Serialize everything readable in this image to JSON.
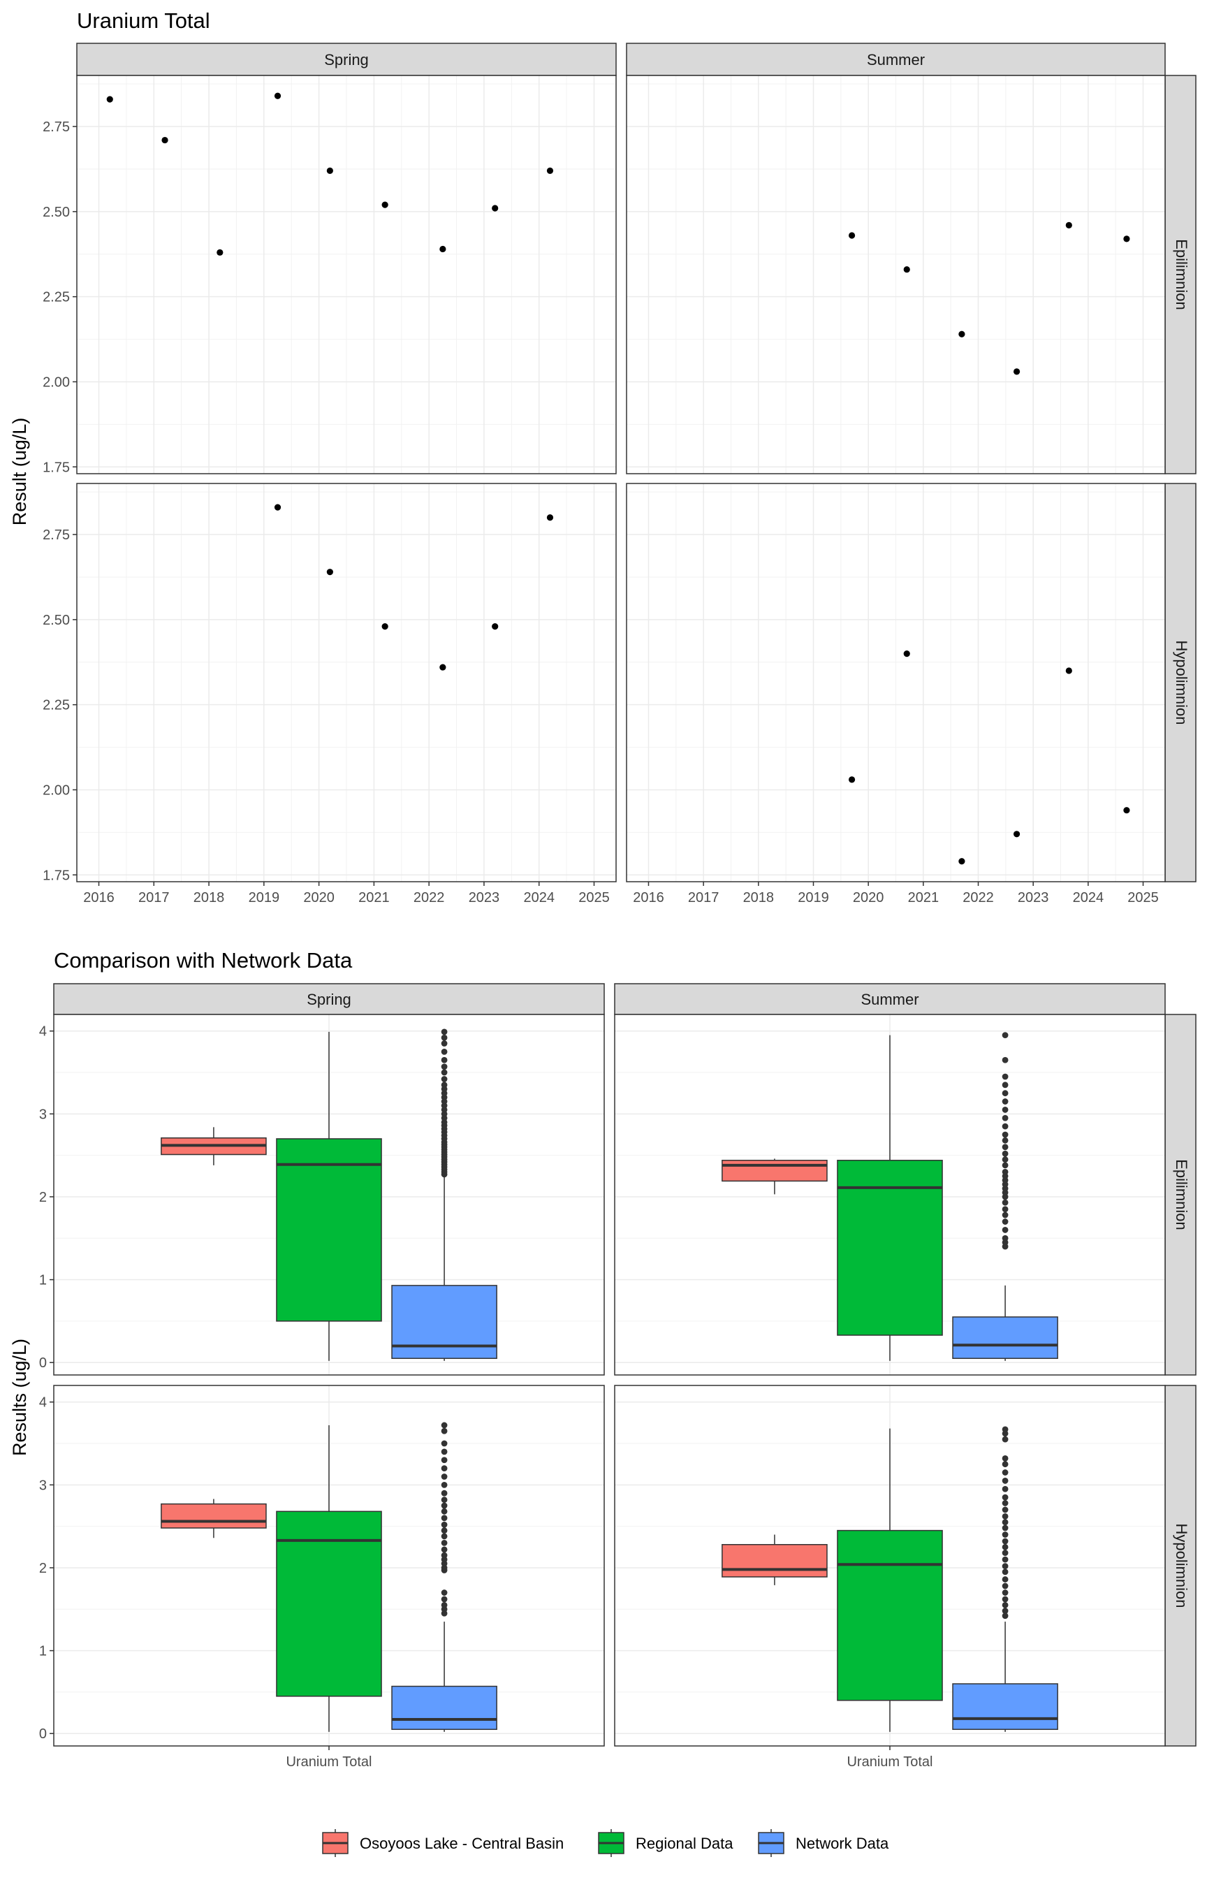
{
  "chart_data": [
    {
      "type": "scatter",
      "title": "Uranium Total",
      "ylabel": "Result (ug/L)",
      "xlabel": "",
      "xlim": [
        2015.6,
        2025.4
      ],
      "ylim": [
        1.73,
        2.9
      ],
      "xticks": [
        2016,
        2017,
        2018,
        2019,
        2020,
        2021,
        2022,
        2023,
        2024,
        2025
      ],
      "yticks": [
        "1.75",
        "2.00",
        "2.25",
        "2.50",
        "2.75"
      ],
      "grid": true,
      "facet_cols": [
        "Spring",
        "Summer"
      ],
      "facet_rows": [
        "Epilimnion",
        "Hypolimnion"
      ],
      "panels": [
        {
          "col": "Spring",
          "row": "Epilimnion",
          "points": [
            [
              2016.2,
              2.83
            ],
            [
              2017.2,
              2.71
            ],
            [
              2018.2,
              2.38
            ],
            [
              2019.25,
              2.84
            ],
            [
              2020.2,
              2.62
            ],
            [
              2021.2,
              2.52
            ],
            [
              2022.25,
              2.39
            ],
            [
              2023.2,
              2.51
            ],
            [
              2024.2,
              2.62
            ]
          ]
        },
        {
          "col": "Summer",
          "row": "Epilimnion",
          "points": [
            [
              2019.7,
              2.43
            ],
            [
              2020.7,
              2.33
            ],
            [
              2021.7,
              2.14
            ],
            [
              2022.7,
              2.03
            ],
            [
              2023.65,
              2.46
            ],
            [
              2024.7,
              2.42
            ]
          ]
        },
        {
          "col": "Spring",
          "row": "Hypolimnion",
          "points": [
            [
              2019.25,
              2.83
            ],
            [
              2020.2,
              2.64
            ],
            [
              2021.2,
              2.48
            ],
            [
              2022.25,
              2.36
            ],
            [
              2023.2,
              2.48
            ],
            [
              2024.2,
              2.8
            ]
          ]
        },
        {
          "col": "Summer",
          "row": "Hypolimnion",
          "points": [
            [
              2019.7,
              2.03
            ],
            [
              2020.7,
              2.4
            ],
            [
              2021.7,
              1.79
            ],
            [
              2022.7,
              1.87
            ],
            [
              2023.65,
              2.35
            ],
            [
              2024.7,
              1.94
            ]
          ]
        }
      ]
    },
    {
      "type": "box",
      "title": "Comparison with Network Data",
      "ylabel": "Results (ug/L)",
      "categories": [
        "Uranium Total"
      ],
      "ylim": [
        -0.15,
        4.2
      ],
      "yticks": [
        0,
        1,
        2,
        3,
        4
      ],
      "grid": true,
      "legend": "bottom",
      "facet_cols": [
        "Spring",
        "Summer"
      ],
      "facet_rows": [
        "Epilimnion",
        "Hypolimnion"
      ],
      "series": [
        {
          "name": "Osoyoos Lake - Central Basin",
          "color": "#F8766D"
        },
        {
          "name": "Regional Data",
          "color": "#00BA38"
        },
        {
          "name": "Network Data",
          "color": "#619CFF"
        }
      ],
      "panels": [
        {
          "col": "Spring",
          "row": "Epilimnion",
          "boxes": [
            {
              "series": "Osoyoos Lake - Central Basin",
              "min": 2.38,
              "q1": 2.51,
              "median": 2.62,
              "q3": 2.71,
              "max": 2.84,
              "outliers": []
            },
            {
              "series": "Regional Data",
              "min": 0.02,
              "q1": 0.5,
              "median": 2.39,
              "q3": 2.7,
              "max": 3.99,
              "outliers": []
            },
            {
              "series": "Network Data",
              "min": 0.02,
              "q1": 0.05,
              "median": 0.2,
              "q3": 0.93,
              "max": 2.25,
              "outliers": [
                2.27,
                2.3,
                2.33,
                2.36,
                2.39,
                2.42,
                2.45,
                2.48,
                2.51,
                2.54,
                2.57,
                2.6,
                2.63,
                2.66,
                2.7,
                2.74,
                2.78,
                2.82,
                2.86,
                2.9,
                2.95,
                3.0,
                3.05,
                3.1,
                3.15,
                3.2,
                3.25,
                3.3,
                3.35,
                3.42,
                3.5,
                3.57,
                3.65,
                3.75,
                3.85,
                3.92,
                3.99
              ]
            }
          ]
        },
        {
          "col": "Summer",
          "row": "Epilimnion",
          "boxes": [
            {
              "series": "Osoyoos Lake - Central Basin",
              "min": 2.03,
              "q1": 2.19,
              "median": 2.38,
              "q3": 2.44,
              "max": 2.46,
              "outliers": []
            },
            {
              "series": "Regional Data",
              "min": 0.02,
              "q1": 0.33,
              "median": 2.11,
              "q3": 2.44,
              "max": 3.95,
              "outliers": []
            },
            {
              "series": "Network Data",
              "min": 0.02,
              "q1": 0.05,
              "median": 0.21,
              "q3": 0.55,
              "max": 0.93,
              "outliers": [
                1.4,
                1.45,
                1.5,
                1.6,
                1.7,
                1.78,
                1.85,
                1.93,
                2.0,
                2.05,
                2.1,
                2.15,
                2.2,
                2.25,
                2.3,
                2.38,
                2.45,
                2.52,
                2.6,
                2.68,
                2.75,
                2.85,
                2.95,
                3.05,
                3.15,
                3.25,
                3.35,
                3.45,
                3.65,
                3.95
              ]
            }
          ]
        },
        {
          "col": "Spring",
          "row": "Hypolimnion",
          "boxes": [
            {
              "series": "Osoyoos Lake - Central Basin",
              "min": 2.36,
              "q1": 2.48,
              "median": 2.56,
              "q3": 2.77,
              "max": 2.83,
              "outliers": []
            },
            {
              "series": "Regional Data",
              "min": 0.02,
              "q1": 0.45,
              "median": 2.33,
              "q3": 2.68,
              "max": 3.72,
              "outliers": []
            },
            {
              "series": "Network Data",
              "min": 0.02,
              "q1": 0.05,
              "median": 0.17,
              "q3": 0.57,
              "max": 1.35,
              "outliers": [
                1.45,
                1.5,
                1.55,
                1.62,
                1.7,
                1.97,
                2.0,
                2.05,
                2.1,
                2.15,
                2.22,
                2.3,
                2.38,
                2.45,
                2.52,
                2.6,
                2.68,
                2.75,
                2.82,
                2.9,
                3.0,
                3.1,
                3.2,
                3.3,
                3.4,
                3.5,
                3.65,
                3.72
              ]
            }
          ]
        },
        {
          "col": "Summer",
          "row": "Hypolimnion",
          "boxes": [
            {
              "series": "Osoyoos Lake - Central Basin",
              "min": 1.79,
              "q1": 1.89,
              "median": 1.98,
              "q3": 2.28,
              "max": 2.4,
              "outliers": []
            },
            {
              "series": "Regional Data",
              "min": 0.02,
              "q1": 0.4,
              "median": 2.04,
              "q3": 2.45,
              "max": 3.68,
              "outliers": []
            },
            {
              "series": "Network Data",
              "min": 0.02,
              "q1": 0.05,
              "median": 0.18,
              "q3": 0.6,
              "max": 1.35,
              "outliers": [
                1.42,
                1.48,
                1.55,
                1.62,
                1.7,
                1.78,
                1.86,
                1.95,
                2.02,
                2.1,
                2.18,
                2.25,
                2.32,
                2.4,
                2.48,
                2.55,
                2.62,
                2.7,
                2.78,
                2.85,
                2.95,
                3.05,
                3.15,
                3.25,
                3.32,
                3.55,
                3.62,
                3.67
              ]
            }
          ]
        }
      ]
    }
  ]
}
